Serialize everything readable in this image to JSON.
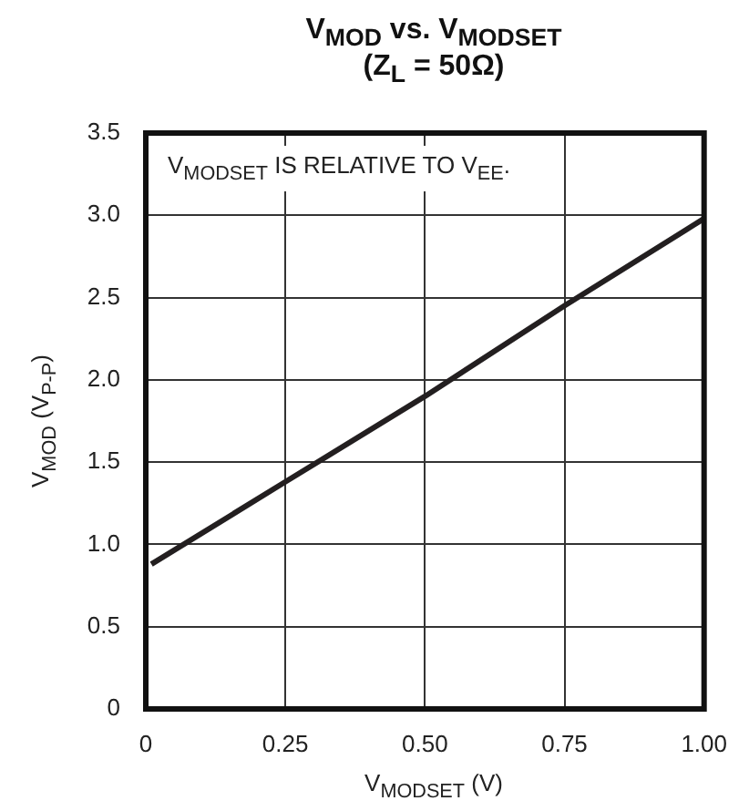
{
  "chart_data": {
    "type": "line",
    "title": "V$_{MOD}$ vs. V$_{MODSET}$",
    "subtitle": "(Z$_{L}$ = 50Ω)",
    "xlabel": "V$_{MODSET}$ (V)",
    "ylabel": "V$_{MOD}$ (V$_{P-P}$)",
    "annotations": [
      "V$_{MODSET}$ IS RELATIVE TO V$_{EE}$."
    ],
    "x": [
      0.01,
      0.25,
      0.5,
      0.75,
      1.0
    ],
    "series": [
      {
        "color": "#231f20",
        "values": [
          0.88,
          1.38,
          1.9,
          2.45,
          2.98
        ]
      }
    ],
    "xlim": [
      0,
      1
    ],
    "xticks": [
      0,
      0.25,
      {
        "value": 0.5,
        "label": "0.50"
      },
      0.75,
      {
        "value": 1,
        "label": "1.00"
      }
    ],
    "ylim": [
      0,
      3.5
    ],
    "yticks": [
      0,
      0.5,
      {
        "value": 1,
        "label": "1.0"
      },
      1.5,
      {
        "value": 2,
        "label": "2.0"
      },
      2.5,
      {
        "value": 3,
        "label": "3.0"
      },
      3.5
    ],
    "grid": true
  }
}
